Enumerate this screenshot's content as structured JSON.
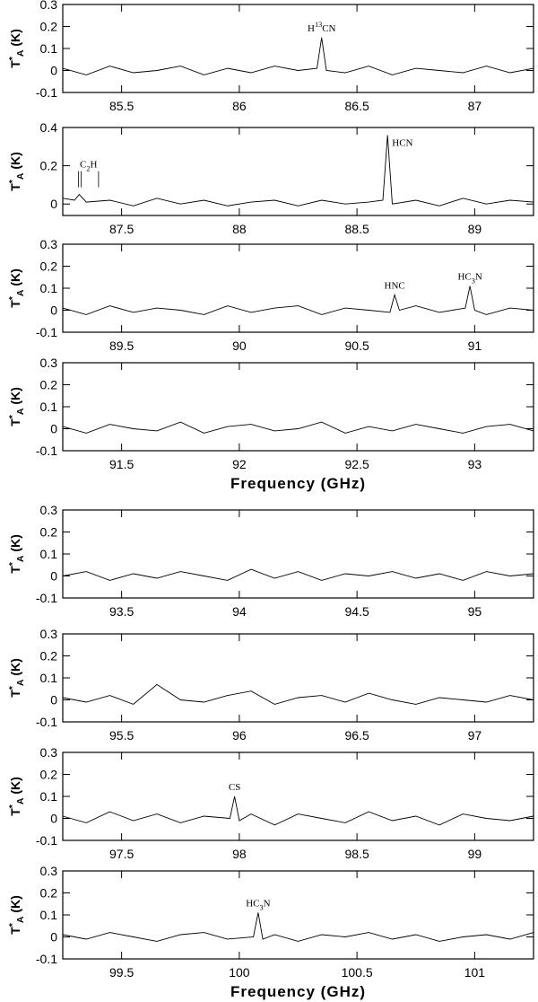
{
  "chart_data": [
    {
      "type": "line",
      "color": "#000000",
      "xlim": [
        85.25,
        87.25
      ],
      "xticks": [
        85.5,
        86,
        86.5,
        87
      ],
      "ylim": [
        -0.1,
        0.3
      ],
      "yticks": [
        -0.1,
        0,
        0.1,
        0.2,
        0.3
      ],
      "ylabel": [
        {
          "t": "T"
        },
        {
          "t": "*",
          "sup": true
        },
        {
          "t": "A",
          "sub": true
        },
        {
          "t": " (K)"
        }
      ],
      "x": [
        85.25,
        85.35,
        85.45,
        85.55,
        85.65,
        85.75,
        85.85,
        85.95,
        86.05,
        86.15,
        86.25,
        86.33,
        86.35,
        86.37,
        86.45,
        86.55,
        86.65,
        86.75,
        86.85,
        86.95,
        87.05,
        87.15,
        87.25
      ],
      "values": [
        0.01,
        -0.02,
        0.02,
        -0.01,
        0.0,
        0.02,
        -0.02,
        0.01,
        -0.01,
        0.02,
        0.0,
        0.01,
        0.15,
        0.0,
        -0.01,
        0.02,
        -0.02,
        0.01,
        0.0,
        -0.01,
        0.02,
        -0.01,
        0.01
      ],
      "annotations": [
        {
          "x": 86.35,
          "parts": [
            {
              "t": "H"
            },
            {
              "t": "13",
              "sup": true
            },
            {
              "t": "CN"
            }
          ]
        }
      ]
    },
    {
      "type": "line",
      "color": "#000000",
      "xlim": [
        87.25,
        89.25
      ],
      "xticks": [
        87.5,
        88,
        88.5,
        89
      ],
      "ylim": [
        -0.06,
        0.4
      ],
      "yticks": [
        0,
        0.2,
        0.4
      ],
      "ylabel": [
        {
          "t": "T"
        },
        {
          "t": "*",
          "sup": true
        },
        {
          "t": "A",
          "sub": true
        },
        {
          "t": " (K)"
        }
      ],
      "x": [
        87.25,
        87.3,
        87.32,
        87.35,
        87.45,
        87.55,
        87.65,
        87.75,
        87.85,
        87.95,
        88.05,
        88.15,
        88.25,
        88.35,
        88.45,
        88.55,
        88.61,
        88.63,
        88.65,
        88.75,
        88.85,
        88.95,
        89.05,
        89.15,
        89.25
      ],
      "values": [
        0.03,
        0.02,
        0.05,
        0.01,
        0.02,
        -0.01,
        0.03,
        0.0,
        0.02,
        -0.01,
        0.01,
        0.02,
        -0.01,
        0.02,
        0.0,
        0.01,
        0.02,
        0.36,
        0.0,
        0.02,
        -0.01,
        0.03,
        0.0,
        0.02,
        0.01
      ],
      "annotations": [
        {
          "lines": [
            87.317,
            87.328,
            87.402
          ],
          "parts": [
            {
              "t": "C"
            },
            {
              "t": "2",
              "sub": true
            },
            {
              "t": "H"
            }
          ]
        },
        {
          "x": 88.63,
          "side": "right",
          "parts": [
            {
              "t": "HCN"
            }
          ]
        }
      ]
    },
    {
      "type": "line",
      "color": "#000000",
      "xlim": [
        89.25,
        91.25
      ],
      "xticks": [
        89.5,
        90,
        90.5,
        91
      ],
      "ylim": [
        -0.1,
        0.3
      ],
      "yticks": [
        -0.1,
        0,
        0.1,
        0.2,
        0.3
      ],
      "ylabel": [
        {
          "t": "T"
        },
        {
          "t": "*",
          "sup": true
        },
        {
          "t": "A",
          "sub": true
        },
        {
          "t": " (K)"
        }
      ],
      "x": [
        89.25,
        89.35,
        89.45,
        89.55,
        89.65,
        89.75,
        89.85,
        89.95,
        90.05,
        90.15,
        90.25,
        90.35,
        90.45,
        90.55,
        90.64,
        90.66,
        90.68,
        90.75,
        90.85,
        90.96,
        90.98,
        91.0,
        91.05,
        91.15,
        91.25
      ],
      "values": [
        0.01,
        -0.02,
        0.02,
        -0.01,
        0.01,
        0.0,
        -0.02,
        0.02,
        -0.01,
        0.01,
        0.02,
        -0.02,
        0.01,
        0.0,
        -0.01,
        0.07,
        0.0,
        0.02,
        -0.01,
        0.01,
        0.11,
        0.0,
        -0.02,
        0.01,
        0.0
      ],
      "annotations": [
        {
          "x": 90.66,
          "parts": [
            {
              "t": "HNC"
            }
          ]
        },
        {
          "x": 90.98,
          "parts": [
            {
              "t": "HC"
            },
            {
              "t": "3",
              "sub": true
            },
            {
              "t": "N"
            }
          ]
        }
      ]
    },
    {
      "type": "line",
      "color": "#000000",
      "xlim": [
        91.25,
        93.25
      ],
      "xticks": [
        91.5,
        92,
        92.5,
        93
      ],
      "ylim": [
        -0.1,
        0.3
      ],
      "yticks": [
        -0.1,
        0,
        0.1,
        0.2,
        0.3
      ],
      "ylabel": [
        {
          "t": "T"
        },
        {
          "t": "*",
          "sup": true
        },
        {
          "t": "A",
          "sub": true
        },
        {
          "t": " (K)"
        }
      ],
      "xlabel": "Frequency (GHz)",
      "x": [
        91.25,
        91.35,
        91.45,
        91.55,
        91.65,
        91.75,
        91.85,
        91.95,
        92.05,
        92.15,
        92.25,
        92.35,
        92.45,
        92.55,
        92.65,
        92.75,
        92.85,
        92.95,
        93.05,
        93.15,
        93.25
      ],
      "values": [
        0.01,
        -0.02,
        0.02,
        0.0,
        -0.01,
        0.03,
        -0.02,
        0.01,
        0.02,
        -0.01,
        0.0,
        0.03,
        -0.02,
        0.01,
        -0.01,
        0.02,
        0.0,
        -0.02,
        0.01,
        0.02,
        -0.01
      ]
    },
    {
      "type": "line",
      "color": "#000000",
      "xlim": [
        93.25,
        95.25
      ],
      "xticks": [
        93.5,
        94,
        94.5,
        95
      ],
      "ylim": [
        -0.1,
        0.3
      ],
      "yticks": [
        -0.1,
        0,
        0.1,
        0.2,
        0.3
      ],
      "ylabel": [
        {
          "t": "T"
        },
        {
          "t": "*",
          "sup": true
        },
        {
          "t": "A",
          "sub": true
        },
        {
          "t": " (K)"
        }
      ],
      "x": [
        93.25,
        93.35,
        93.45,
        93.55,
        93.65,
        93.75,
        93.85,
        93.95,
        94.05,
        94.15,
        94.25,
        94.35,
        94.45,
        94.55,
        94.65,
        94.75,
        94.85,
        94.95,
        95.05,
        95.15,
        95.25
      ],
      "values": [
        0.0,
        0.02,
        -0.02,
        0.01,
        -0.01,
        0.02,
        0.0,
        -0.02,
        0.03,
        -0.01,
        0.02,
        -0.02,
        0.01,
        0.0,
        0.02,
        -0.01,
        0.01,
        -0.02,
        0.02,
        0.0,
        0.01
      ]
    },
    {
      "type": "line",
      "color": "#000000",
      "xlim": [
        95.25,
        97.25
      ],
      "xticks": [
        95.5,
        96,
        96.5,
        97
      ],
      "ylim": [
        -0.1,
        0.3
      ],
      "yticks": [
        -0.1,
        0,
        0.1,
        0.2,
        0.3
      ],
      "ylabel": [
        {
          "t": "T"
        },
        {
          "t": "*",
          "sup": true
        },
        {
          "t": "A",
          "sub": true
        },
        {
          "t": " (K)"
        }
      ],
      "x": [
        95.25,
        95.35,
        95.45,
        95.55,
        95.65,
        95.75,
        95.85,
        95.95,
        96.05,
        96.15,
        96.25,
        96.35,
        96.45,
        96.55,
        96.65,
        96.75,
        96.85,
        96.95,
        97.05,
        97.15,
        97.25
      ],
      "values": [
        0.01,
        -0.01,
        0.02,
        -0.02,
        0.07,
        0.0,
        -0.01,
        0.02,
        0.04,
        -0.02,
        0.01,
        0.02,
        -0.01,
        0.03,
        0.0,
        -0.02,
        0.01,
        0.0,
        -0.01,
        0.02,
        0.0
      ]
    },
    {
      "type": "line",
      "color": "#000000",
      "xlim": [
        97.25,
        99.25
      ],
      "xticks": [
        97.5,
        98,
        98.5,
        99
      ],
      "ylim": [
        -0.1,
        0.3
      ],
      "yticks": [
        -0.1,
        0,
        0.1,
        0.2,
        0.3
      ],
      "ylabel": [
        {
          "t": "T"
        },
        {
          "t": "*",
          "sup": true
        },
        {
          "t": "A",
          "sub": true
        },
        {
          "t": " (K)"
        }
      ],
      "x": [
        97.25,
        97.35,
        97.45,
        97.55,
        97.65,
        97.75,
        97.85,
        97.96,
        97.98,
        98.0,
        98.05,
        98.15,
        98.25,
        98.35,
        98.45,
        98.55,
        98.65,
        98.75,
        98.85,
        98.95,
        99.05,
        99.15,
        99.25
      ],
      "values": [
        0.01,
        -0.02,
        0.03,
        -0.01,
        0.02,
        -0.02,
        0.01,
        0.0,
        0.1,
        -0.01,
        0.02,
        -0.03,
        0.02,
        0.0,
        -0.02,
        0.03,
        -0.01,
        0.01,
        -0.03,
        0.02,
        0.0,
        -0.01,
        0.01
      ],
      "annotations": [
        {
          "x": 97.98,
          "parts": [
            {
              "t": "CS"
            }
          ]
        }
      ]
    },
    {
      "type": "line",
      "color": "#000000",
      "xlim": [
        99.25,
        101.25
      ],
      "xticks": [
        99.5,
        100,
        100.5,
        101
      ],
      "ylim": [
        -0.1,
        0.3
      ],
      "yticks": [
        -0.1,
        0,
        0.1,
        0.2,
        0.3
      ],
      "ylabel": [
        {
          "t": "T"
        },
        {
          "t": "*",
          "sup": true
        },
        {
          "t": "A",
          "sub": true
        },
        {
          "t": " (K)"
        }
      ],
      "xlabel": "Frequency (GHz)",
      "x": [
        99.25,
        99.35,
        99.45,
        99.55,
        99.65,
        99.75,
        99.85,
        99.95,
        100.06,
        100.08,
        100.1,
        100.15,
        100.25,
        100.35,
        100.45,
        100.55,
        100.65,
        100.75,
        100.85,
        100.95,
        101.05,
        101.15,
        101.25
      ],
      "values": [
        0.01,
        -0.01,
        0.02,
        0.0,
        -0.02,
        0.01,
        0.02,
        -0.01,
        0.0,
        0.11,
        -0.01,
        0.01,
        -0.02,
        0.01,
        0.0,
        0.02,
        -0.01,
        0.01,
        -0.02,
        0.0,
        0.01,
        -0.01,
        0.02
      ],
      "annotations": [
        {
          "x": 100.08,
          "parts": [
            {
              "t": "HC"
            },
            {
              "t": "3",
              "sub": true
            },
            {
              "t": "N"
            }
          ]
        }
      ]
    }
  ]
}
